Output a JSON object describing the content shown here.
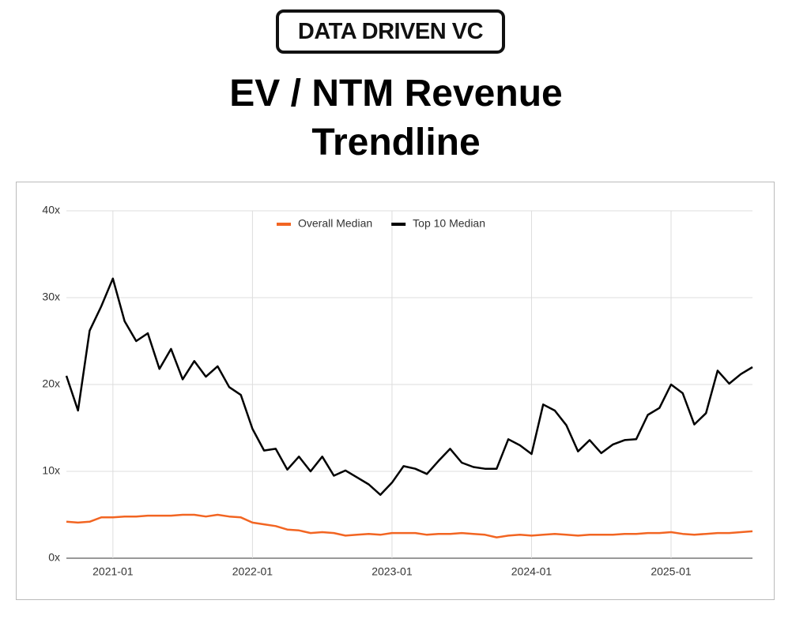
{
  "logo": "DATA DRIVEN VC",
  "chart_data": {
    "type": "line",
    "title": "EV / NTM Revenue Trendline",
    "x": [
      "2020-09",
      "2020-10",
      "2020-11",
      "2020-12",
      "2021-01",
      "2021-02",
      "2021-03",
      "2021-04",
      "2021-05",
      "2021-06",
      "2021-07",
      "2021-08",
      "2021-09",
      "2021-10",
      "2021-11",
      "2021-12",
      "2022-01",
      "2022-02",
      "2022-03",
      "2022-04",
      "2022-05",
      "2022-06",
      "2022-07",
      "2022-08",
      "2022-09",
      "2022-10",
      "2022-11",
      "2022-12",
      "2023-01",
      "2023-02",
      "2023-03",
      "2023-04",
      "2023-05",
      "2023-06",
      "2023-07",
      "2023-08",
      "2023-09",
      "2023-10",
      "2023-11",
      "2023-12",
      "2024-01",
      "2024-02",
      "2024-03",
      "2024-04",
      "2024-05",
      "2024-06",
      "2024-07",
      "2024-08",
      "2024-09",
      "2024-10",
      "2024-11",
      "2024-12",
      "2025-01",
      "2025-02",
      "2025-03",
      "2025-04",
      "2025-05",
      "2025-06",
      "2025-07",
      "2025-08"
    ],
    "series": [
      {
        "name": "Overall Median",
        "color": "#f26522",
        "values": [
          4.2,
          4.1,
          4.2,
          4.7,
          4.7,
          4.8,
          4.8,
          4.9,
          4.9,
          4.9,
          5.0,
          5.0,
          4.8,
          5.0,
          4.8,
          4.7,
          4.1,
          3.9,
          3.7,
          3.3,
          3.2,
          2.9,
          3.0,
          2.9,
          2.6,
          2.7,
          2.8,
          2.7,
          2.9,
          2.9,
          2.9,
          2.7,
          2.8,
          2.8,
          2.9,
          2.8,
          2.7,
          2.4,
          2.6,
          2.7,
          2.6,
          2.7,
          2.8,
          2.7,
          2.6,
          2.7,
          2.7,
          2.7,
          2.8,
          2.8,
          2.9,
          2.9,
          3.0,
          2.8,
          2.7,
          2.8,
          2.9,
          2.9,
          3.0,
          3.1
        ]
      },
      {
        "name": "Top 10 Median",
        "color": "#000000",
        "values": [
          21,
          17,
          26.2,
          29,
          32.2,
          27.3,
          25,
          25.9,
          21.8,
          24.1,
          20.6,
          22.7,
          20.9,
          22.1,
          19.7,
          18.8,
          14.9,
          12.4,
          12.6,
          10.2,
          11.7,
          10,
          11.7,
          9.5,
          10.1,
          9.3,
          8.5,
          7.3,
          8.7,
          10.6,
          10.3,
          9.7,
          11.2,
          12.6,
          11,
          10.5,
          10.3,
          10.3,
          13.7,
          13,
          12,
          17.7,
          17,
          15.3,
          12.3,
          13.6,
          12.1,
          13.1,
          13.6,
          13.7,
          16.5,
          17.3,
          20,
          19,
          15.4,
          16.7,
          21.6,
          20.1,
          21.2,
          22
        ]
      }
    ],
    "xlim": [
      "2020-09",
      "2025-08"
    ],
    "xticks": [
      "2021-01",
      "2022-01",
      "2023-01",
      "2024-01",
      "2025-01"
    ],
    "ylim": [
      0,
      40
    ],
    "yticks": [
      {
        "value": 0,
        "label": "0x"
      },
      {
        "value": 10,
        "label": "10x"
      },
      {
        "value": 20,
        "label": "20x"
      },
      {
        "value": 30,
        "label": "30x"
      },
      {
        "value": 40,
        "label": "40x"
      }
    ],
    "grid": true,
    "legend": "top"
  }
}
